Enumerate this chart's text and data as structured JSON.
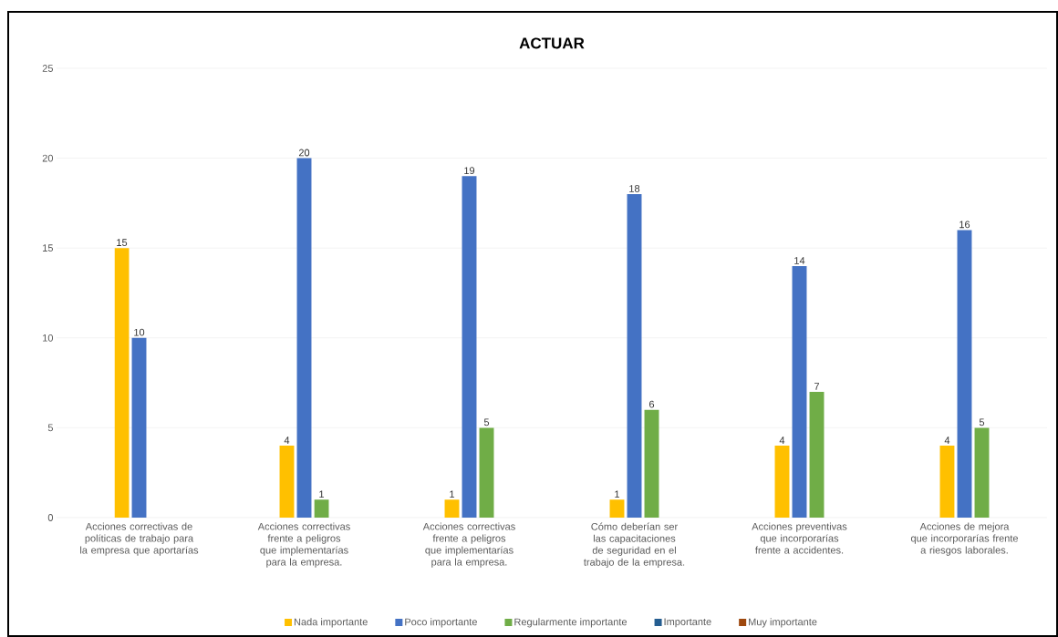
{
  "chart_data": {
    "type": "bar",
    "title": "ACTUAR",
    "categories": [
      "Acciones correctivas de políticas de trabajo para la empresa que aportarías",
      "Acciones correctivas frente a peligros que implementarías para la empresa.",
      "Acciones correctivas frente a peligros que implementarías para la empresa.",
      "Cómo deberían ser las capacitaciones de seguridad en el trabajo de la empresa.",
      "Acciones preventivas que incorporarías frente a accidentes.",
      "Acciones de mejora que incorporarías frente a riesgos laborales."
    ],
    "series": [
      {
        "name": "Nada importante",
        "color": "#ffc000",
        "values": [
          15,
          4,
          1,
          1,
          4,
          4
        ]
      },
      {
        "name": "Poco importante",
        "color": "#4472c4",
        "values": [
          10,
          20,
          19,
          18,
          14,
          16
        ]
      },
      {
        "name": "Regularmente importante",
        "color": "#70ad47",
        "values": [
          null,
          1,
          5,
          6,
          7,
          5
        ]
      },
      {
        "name": "Importante",
        "color": "#255e91",
        "values": [
          null,
          null,
          null,
          null,
          null,
          null
        ]
      },
      {
        "name": "Muy importante",
        "color": "#9e480e",
        "values": [
          null,
          null,
          null,
          null,
          null,
          null
        ]
      }
    ],
    "ylim": [
      0,
      25
    ],
    "yticks": [
      0,
      5,
      10,
      15,
      20,
      25
    ],
    "grid": "y",
    "legend": "bottom",
    "data_labels": true
  }
}
